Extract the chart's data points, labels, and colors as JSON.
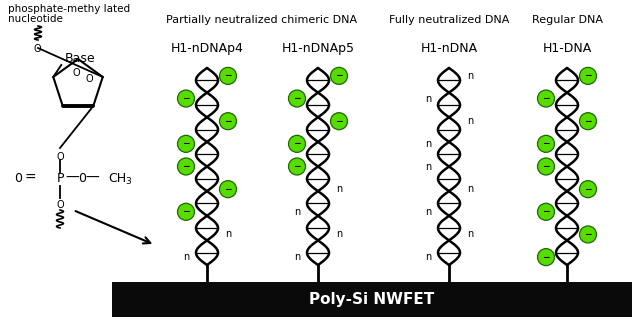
{
  "bg_color": "#ffffff",
  "poly_si_label": "Poly-Si NWFET",
  "poly_si_bar_color": "#0a0a0a",
  "poly_si_text_color": "#ffffff",
  "green_dot_color": "#55dd00",
  "green_dot_edge": "#226600",
  "neg_symbol": "−",
  "n_symbol": "n",
  "cat_label_1": "Partially neutralized chimeric DNA",
  "cat_label_2": "Fully neutralized DNA",
  "cat_label_3": "Regular DNA",
  "sub_label_1": "H1-nDNAp4",
  "sub_label_2": "H1-nDNAp5",
  "sub_label_3": "H1-nDNA",
  "sub_label_4": "H1-DNA",
  "nucleotide_line1": "phosphate-methy lated",
  "nucleotide_line2": "nucleotide"
}
